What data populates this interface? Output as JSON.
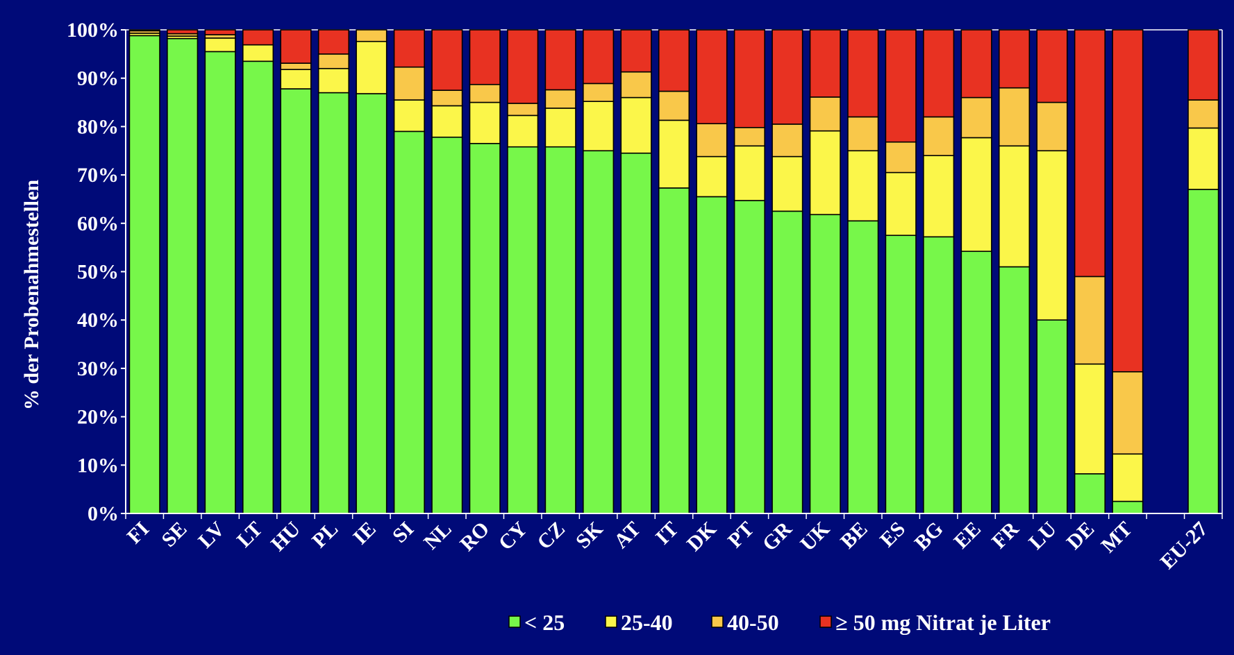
{
  "chart_data": {
    "type": "bar",
    "stacked": true,
    "percent_stacked": true,
    "ylabel": "% der Probenahmestellen",
    "xlabel": "",
    "ylim": [
      0,
      100
    ],
    "yticks": [
      "0%",
      "10%",
      "20%",
      "30%",
      "40%",
      "50%",
      "60%",
      "70%",
      "80%",
      "90%",
      "100%"
    ],
    "grid": false,
    "legend_position": "bottom",
    "categories": [
      "FI",
      "SE",
      "LV",
      "LT",
      "HU",
      "PL",
      "IE",
      "SI",
      "NL",
      "RO",
      "CY",
      "CZ",
      "SK",
      "AT",
      "IT",
      "DK",
      "PT",
      "GR",
      "UK",
      "BE",
      "ES",
      "BG",
      "EE",
      "FR",
      "LU",
      "DE",
      "MT",
      "",
      "EU-27"
    ],
    "series": [
      {
        "name": "< 25",
        "color": "#77f74a",
        "values": [
          98.8,
          98.2,
          95.5,
          93.5,
          87.8,
          87.0,
          86.8,
          79.0,
          77.8,
          76.5,
          75.8,
          75.8,
          75.0,
          74.5,
          67.3,
          65.5,
          64.7,
          62.5,
          61.8,
          60.5,
          57.5,
          57.2,
          54.2,
          51.0,
          40.0,
          8.2,
          2.5,
          null,
          67.0
        ]
      },
      {
        "name": "25-40",
        "color": "#fbf64a",
        "values": [
          0.5,
          0.5,
          2.8,
          3.4,
          4.0,
          5.0,
          10.8,
          6.5,
          6.5,
          8.5,
          6.5,
          8.0,
          10.2,
          11.5,
          14.0,
          8.3,
          11.3,
          11.3,
          17.3,
          14.5,
          13.0,
          16.8,
          23.5,
          25.0,
          35.0,
          22.7,
          9.8,
          null,
          12.7
        ]
      },
      {
        "name": "40-50",
        "color": "#f9c84a",
        "values": [
          0.5,
          0.5,
          0.7,
          0,
          1.3,
          3.0,
          2.4,
          6.8,
          3.2,
          3.7,
          2.5,
          3.8,
          3.7,
          5.3,
          6.0,
          6.8,
          3.8,
          6.7,
          7.0,
          7.0,
          6.3,
          8.0,
          8.3,
          12.0,
          10.0,
          18.1,
          17.0,
          null,
          5.8
        ]
      },
      {
        "name": "≥ 50 mg Nitrat je Liter",
        "color": "#e83222",
        "values": [
          0.2,
          0.8,
          1.0,
          3.1,
          6.9,
          5.0,
          0,
          7.7,
          12.5,
          11.3,
          15.2,
          12.4,
          11.1,
          8.7,
          12.7,
          19.4,
          20.2,
          19.5,
          13.9,
          18.0,
          23.2,
          18.0,
          14.0,
          12.0,
          15.0,
          51.0,
          70.7,
          null,
          14.5
        ]
      }
    ]
  },
  "colors": {
    "background": "#000a78",
    "text": "#ffffff",
    "axis": "#ffffff"
  }
}
